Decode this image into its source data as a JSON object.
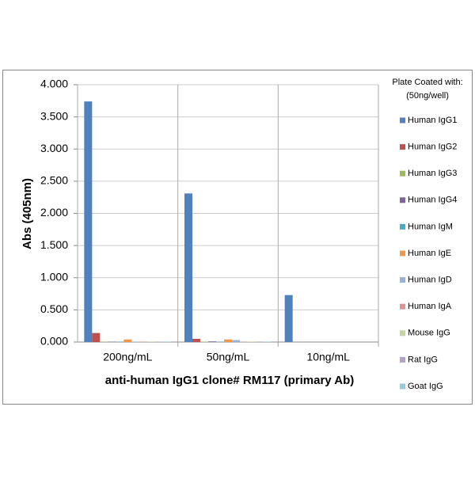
{
  "chart_data": {
    "type": "bar",
    "x_label": "anti-human IgG1 clone# RM117 (primary Ab)",
    "y_label": "Abs (405nm)",
    "legend_title": [
      "Plate Coated with:",
      "(50ng/well)"
    ],
    "categories": [
      "200ng/mL",
      "50ng/mL",
      "10ng/mL"
    ],
    "series": [
      {
        "name": "Human IgG1",
        "color": "#4f81bd",
        "values": [
          3.74,
          2.31,
          0.73
        ]
      },
      {
        "name": "Human IgG2",
        "color": "#c0504d",
        "values": [
          0.14,
          0.05,
          0
        ]
      },
      {
        "name": "Human IgG3",
        "color": "#9bbb59",
        "values": [
          0.005,
          0.005,
          0
        ]
      },
      {
        "name": "Human IgG4",
        "color": "#8064a2",
        "values": [
          0.005,
          0.01,
          0
        ]
      },
      {
        "name": "Human IgM",
        "color": "#4bacc6",
        "values": [
          0.005,
          0.005,
          0
        ]
      },
      {
        "name": "Human IgE",
        "color": "#f79646",
        "values": [
          0.04,
          0.04,
          0
        ]
      },
      {
        "name": "Human IgD",
        "color": "#95b3d7",
        "values": [
          0.005,
          0.03,
          0
        ]
      },
      {
        "name": "Human IgA",
        "color": "#d99694",
        "values": [
          0.005,
          0.005,
          0
        ]
      },
      {
        "name": "Mouse IgG",
        "color": "#c3d69b",
        "values": [
          0.005,
          0.005,
          0
        ]
      },
      {
        "name": "Rat IgG",
        "color": "#b3a2c7",
        "values": [
          0.005,
          0.005,
          0
        ]
      },
      {
        "name": "Goat IgG",
        "color": "#93cddd",
        "values": [
          0.005,
          0.005,
          0
        ]
      }
    ],
    "ylim": [
      0,
      4
    ],
    "yticks": [
      {
        "value": 0,
        "label": "0.000"
      },
      {
        "value": 0.5,
        "label": "0.500"
      },
      {
        "value": 1,
        "label": "1.000"
      },
      {
        "value": 1.5,
        "label": "1.500"
      },
      {
        "value": 2,
        "label": "2.000"
      },
      {
        "value": 2.5,
        "label": "2.500"
      },
      {
        "value": 3,
        "label": "3.000"
      },
      {
        "value": 3.5,
        "label": "3.500"
      },
      {
        "value": 4,
        "label": "4.000"
      }
    ],
    "grid": true,
    "legend": "right"
  }
}
